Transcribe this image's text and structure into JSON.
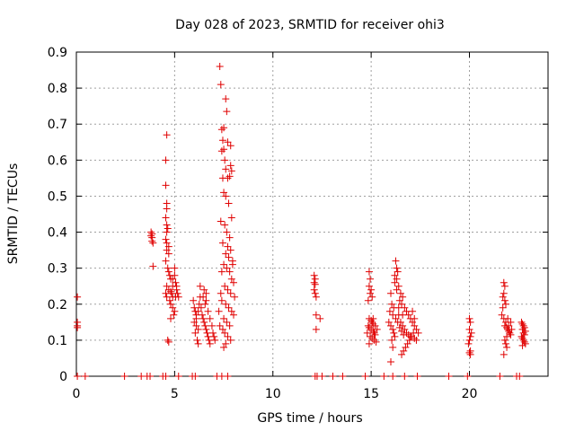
{
  "chart_data": {
    "type": "scatter",
    "title": "Day 028 of 2023, SRMTID for receiver ohi3",
    "xlabel": "GPS time / hours",
    "ylabel": "SRMTID / TECUs",
    "xlim": [
      0,
      24
    ],
    "ylim": [
      0,
      0.9
    ],
    "xticks": [
      0,
      5,
      10,
      15,
      20
    ],
    "yticks": [
      0,
      0.1,
      0.2,
      0.3,
      0.4,
      0.5,
      0.6,
      0.7,
      0.8,
      0.9
    ],
    "grid": true,
    "marker": "+",
    "color": "#e00000",
    "series": [
      {
        "name": "ohi3",
        "points": [
          [
            0.05,
            0.22
          ],
          [
            0.05,
            0.15
          ],
          [
            0.05,
            0.14
          ],
          [
            0.05,
            0.135
          ],
          [
            0.05,
            0
          ],
          [
            0.45,
            0
          ],
          [
            2.45,
            0
          ],
          [
            3.3,
            0
          ],
          [
            3.6,
            0
          ],
          [
            3.75,
            0
          ],
          [
            4.4,
            0
          ],
          [
            4.55,
            0
          ],
          [
            5.2,
            0
          ],
          [
            5.9,
            0
          ],
          [
            6.05,
            0
          ],
          [
            7.15,
            0
          ],
          [
            7.4,
            0
          ],
          [
            7.7,
            0
          ],
          [
            12.15,
            0
          ],
          [
            12.25,
            0
          ],
          [
            12.5,
            0
          ],
          [
            13.05,
            0
          ],
          [
            13.55,
            0
          ],
          [
            14.7,
            0
          ],
          [
            15.65,
            0
          ],
          [
            16.1,
            0
          ],
          [
            16.7,
            0
          ],
          [
            17.35,
            0
          ],
          [
            18.95,
            0
          ],
          [
            19.9,
            0
          ],
          [
            21.55,
            0
          ],
          [
            22.4,
            0
          ],
          [
            22.55,
            0
          ],
          [
            3.8,
            0.4
          ],
          [
            3.8,
            0.39
          ],
          [
            3.85,
            0.385
          ],
          [
            3.85,
            0.375
          ],
          [
            3.9,
            0.37
          ],
          [
            3.9,
            0.305
          ],
          [
            3.85,
            0.395
          ],
          [
            4.6,
            0.67
          ],
          [
            4.55,
            0.6
          ],
          [
            4.55,
            0.53
          ],
          [
            4.6,
            0.48
          ],
          [
            4.6,
            0.465
          ],
          [
            4.55,
            0.44
          ],
          [
            4.6,
            0.42
          ],
          [
            4.65,
            0.41
          ],
          [
            4.6,
            0.4
          ],
          [
            4.55,
            0.38
          ],
          [
            4.6,
            0.37
          ],
          [
            4.7,
            0.36
          ],
          [
            4.6,
            0.35
          ],
          [
            4.7,
            0.34
          ],
          [
            4.55,
            0.32
          ],
          [
            4.65,
            0.3
          ],
          [
            4.7,
            0.29
          ],
          [
            4.75,
            0.28
          ],
          [
            4.8,
            0.27
          ],
          [
            4.6,
            0.25
          ],
          [
            4.7,
            0.24
          ],
          [
            4.8,
            0.235
          ],
          [
            4.85,
            0.23
          ],
          [
            4.9,
            0.22
          ],
          [
            4.75,
            0.21
          ],
          [
            4.8,
            0.2
          ],
          [
            4.9,
            0.19
          ],
          [
            5.0,
            0.18
          ],
          [
            4.95,
            0.17
          ],
          [
            5.05,
            0.22
          ],
          [
            5.1,
            0.25
          ],
          [
            5.0,
            0.28
          ],
          [
            5.05,
            0.26
          ],
          [
            4.9,
            0.25
          ],
          [
            5.1,
            0.24
          ],
          [
            4.8,
            0.16
          ],
          [
            4.65,
            0.1
          ],
          [
            4.7,
            0.095
          ],
          [
            4.55,
            0.23
          ],
          [
            4.6,
            0.22
          ],
          [
            4.9,
            0.27
          ],
          [
            5.0,
            0.3
          ],
          [
            5.15,
            0.23
          ],
          [
            5.2,
            0.22
          ],
          [
            5.95,
            0.21
          ],
          [
            6.0,
            0.19
          ],
          [
            6.05,
            0.18
          ],
          [
            6.1,
            0.17
          ],
          [
            6.0,
            0.15
          ],
          [
            6.1,
            0.14
          ],
          [
            6.2,
            0.13
          ],
          [
            6.05,
            0.12
          ],
          [
            6.15,
            0.1
          ],
          [
            6.2,
            0.09
          ],
          [
            6.25,
            0.2
          ],
          [
            6.3,
            0.22
          ],
          [
            6.35,
            0.19
          ],
          [
            6.4,
            0.17
          ],
          [
            6.45,
            0.16
          ],
          [
            6.5,
            0.15
          ],
          [
            6.55,
            0.14
          ],
          [
            6.6,
            0.13
          ],
          [
            6.65,
            0.12
          ],
          [
            6.7,
            0.11
          ],
          [
            6.75,
            0.1
          ],
          [
            6.8,
            0.09
          ],
          [
            6.5,
            0.24
          ],
          [
            6.6,
            0.21
          ],
          [
            6.7,
            0.18
          ],
          [
            6.8,
            0.16
          ],
          [
            6.9,
            0.14
          ],
          [
            6.95,
            0.12
          ],
          [
            7.0,
            0.11
          ],
          [
            7.05,
            0.1
          ],
          [
            6.3,
            0.25
          ],
          [
            6.45,
            0.22
          ],
          [
            6.55,
            0.2
          ],
          [
            6.6,
            0.23
          ],
          [
            6.2,
            0.18
          ],
          [
            6.1,
            0.16
          ],
          [
            7.3,
            0.86
          ],
          [
            7.35,
            0.81
          ],
          [
            7.6,
            0.77
          ],
          [
            7.65,
            0.735
          ],
          [
            7.5,
            0.69
          ],
          [
            7.4,
            0.685
          ],
          [
            7.45,
            0.655
          ],
          [
            7.7,
            0.65
          ],
          [
            7.85,
            0.64
          ],
          [
            7.5,
            0.63
          ],
          [
            7.4,
            0.625
          ],
          [
            7.55,
            0.6
          ],
          [
            7.85,
            0.585
          ],
          [
            7.6,
            0.575
          ],
          [
            7.9,
            0.57
          ],
          [
            7.8,
            0.555
          ],
          [
            7.45,
            0.55
          ],
          [
            7.7,
            0.55
          ],
          [
            7.5,
            0.51
          ],
          [
            7.6,
            0.5
          ],
          [
            7.75,
            0.48
          ],
          [
            7.9,
            0.44
          ],
          [
            7.35,
            0.43
          ],
          [
            7.55,
            0.42
          ],
          [
            7.65,
            0.4
          ],
          [
            7.8,
            0.385
          ],
          [
            7.45,
            0.37
          ],
          [
            7.7,
            0.36
          ],
          [
            7.85,
            0.35
          ],
          [
            7.6,
            0.34
          ],
          [
            7.75,
            0.33
          ],
          [
            7.95,
            0.32
          ],
          [
            7.5,
            0.31
          ],
          [
            7.65,
            0.3
          ],
          [
            7.8,
            0.29
          ],
          [
            7.9,
            0.27
          ],
          [
            8.0,
            0.26
          ],
          [
            7.55,
            0.25
          ],
          [
            7.7,
            0.24
          ],
          [
            7.85,
            0.23
          ],
          [
            8.05,
            0.22
          ],
          [
            7.4,
            0.21
          ],
          [
            7.6,
            0.2
          ],
          [
            7.75,
            0.19
          ],
          [
            7.9,
            0.18
          ],
          [
            8.0,
            0.17
          ],
          [
            7.5,
            0.16
          ],
          [
            7.65,
            0.15
          ],
          [
            7.8,
            0.14
          ],
          [
            7.3,
            0.14
          ],
          [
            7.45,
            0.13
          ],
          [
            7.55,
            0.12
          ],
          [
            7.7,
            0.11
          ],
          [
            7.85,
            0.1
          ],
          [
            7.6,
            0.09
          ],
          [
            7.35,
            0.23
          ],
          [
            7.25,
            0.18
          ],
          [
            7.4,
            0.29
          ],
          [
            7.95,
            0.31
          ],
          [
            7.5,
            0.08
          ],
          [
            12.1,
            0.28
          ],
          [
            12.15,
            0.27
          ],
          [
            12.1,
            0.26
          ],
          [
            12.15,
            0.255
          ],
          [
            12.1,
            0.24
          ],
          [
            12.15,
            0.23
          ],
          [
            12.2,
            0.22
          ],
          [
            12.2,
            0.17
          ],
          [
            12.4,
            0.16
          ],
          [
            12.2,
            0.13
          ],
          [
            14.9,
            0.29
          ],
          [
            14.95,
            0.27
          ],
          [
            14.9,
            0.25
          ],
          [
            15.0,
            0.24
          ],
          [
            14.95,
            0.23
          ],
          [
            15.05,
            0.22
          ],
          [
            14.85,
            0.21
          ],
          [
            14.9,
            0.16
          ],
          [
            15.0,
            0.155
          ],
          [
            15.05,
            0.15
          ],
          [
            15.1,
            0.145
          ],
          [
            14.85,
            0.14
          ],
          [
            14.9,
            0.135
          ],
          [
            15.0,
            0.13
          ],
          [
            15.1,
            0.125
          ],
          [
            15.15,
            0.12
          ],
          [
            15.2,
            0.115
          ],
          [
            14.8,
            0.12
          ],
          [
            14.95,
            0.11
          ],
          [
            15.05,
            0.105
          ],
          [
            15.15,
            0.1
          ],
          [
            15.25,
            0.095
          ],
          [
            14.9,
            0.09
          ],
          [
            15.2,
            0.14
          ],
          [
            15.3,
            0.13
          ],
          [
            15.1,
            0.16
          ],
          [
            16.25,
            0.32
          ],
          [
            16.3,
            0.3
          ],
          [
            16.35,
            0.29
          ],
          [
            16.3,
            0.27
          ],
          [
            16.2,
            0.26
          ],
          [
            16.4,
            0.25
          ],
          [
            16.5,
            0.23
          ],
          [
            16.6,
            0.22
          ],
          [
            16.45,
            0.21
          ],
          [
            16.55,
            0.2
          ],
          [
            16.7,
            0.19
          ],
          [
            16.8,
            0.18
          ],
          [
            16.9,
            0.17
          ],
          [
            17.0,
            0.16
          ],
          [
            17.1,
            0.15
          ],
          [
            17.2,
            0.14
          ],
          [
            17.3,
            0.13
          ],
          [
            17.15,
            0.12
          ],
          [
            17.05,
            0.11
          ],
          [
            16.95,
            0.1
          ],
          [
            16.85,
            0.09
          ],
          [
            16.75,
            0.08
          ],
          [
            16.65,
            0.07
          ],
          [
            16.55,
            0.06
          ],
          [
            16.4,
            0.17
          ],
          [
            16.5,
            0.15
          ],
          [
            16.6,
            0.14
          ],
          [
            16.7,
            0.13
          ],
          [
            16.8,
            0.12
          ],
          [
            16.9,
            0.115
          ],
          [
            17.0,
            0.11
          ],
          [
            17.2,
            0.105
          ],
          [
            17.3,
            0.1
          ],
          [
            17.4,
            0.12
          ],
          [
            16.0,
            0.23
          ],
          [
            16.05,
            0.2
          ],
          [
            15.95,
            0.18
          ],
          [
            16.1,
            0.17
          ],
          [
            15.9,
            0.15
          ],
          [
            16.0,
            0.14
          ],
          [
            16.1,
            0.13
          ],
          [
            16.15,
            0.12
          ],
          [
            16.2,
            0.11
          ],
          [
            16.05,
            0.1
          ],
          [
            16.1,
            0.08
          ],
          [
            16.0,
            0.04
          ],
          [
            16.15,
            0.19
          ],
          [
            16.25,
            0.16
          ],
          [
            16.35,
            0.15
          ],
          [
            16.45,
            0.135
          ],
          [
            16.55,
            0.125
          ],
          [
            16.65,
            0.115
          ],
          [
            17.1,
            0.18
          ],
          [
            17.2,
            0.16
          ],
          [
            16.3,
            0.24
          ],
          [
            16.2,
            0.28
          ],
          [
            16.4,
            0.19
          ],
          [
            16.6,
            0.17
          ],
          [
            20.0,
            0.16
          ],
          [
            20.05,
            0.15
          ],
          [
            20.0,
            0.13
          ],
          [
            20.1,
            0.12
          ],
          [
            20.05,
            0.11
          ],
          [
            20.0,
            0.1
          ],
          [
            19.95,
            0.09
          ],
          [
            20.05,
            0.07
          ],
          [
            20.0,
            0.065
          ],
          [
            20.05,
            0.06
          ],
          [
            21.75,
            0.26
          ],
          [
            21.8,
            0.25
          ],
          [
            21.75,
            0.23
          ],
          [
            21.7,
            0.22
          ],
          [
            21.8,
            0.21
          ],
          [
            21.85,
            0.2
          ],
          [
            21.7,
            0.19
          ],
          [
            21.75,
            0.16
          ],
          [
            21.85,
            0.15
          ],
          [
            21.8,
            0.14
          ],
          [
            21.9,
            0.135
          ],
          [
            21.95,
            0.13
          ],
          [
            22.0,
            0.125
          ],
          [
            22.05,
            0.12
          ],
          [
            22.1,
            0.115
          ],
          [
            21.9,
            0.11
          ],
          [
            21.8,
            0.1
          ],
          [
            21.85,
            0.09
          ],
          [
            21.9,
            0.08
          ],
          [
            21.75,
            0.06
          ],
          [
            22.0,
            0.14
          ],
          [
            22.1,
            0.15
          ],
          [
            21.95,
            0.16
          ],
          [
            22.15,
            0.13
          ],
          [
            21.65,
            0.17
          ],
          [
            22.65,
            0.15
          ],
          [
            22.7,
            0.145
          ],
          [
            22.75,
            0.14
          ],
          [
            22.8,
            0.135
          ],
          [
            22.7,
            0.13
          ],
          [
            22.75,
            0.12
          ],
          [
            22.8,
            0.115
          ],
          [
            22.65,
            0.11
          ],
          [
            22.7,
            0.105
          ],
          [
            22.75,
            0.1
          ],
          [
            22.8,
            0.095
          ],
          [
            22.85,
            0.09
          ],
          [
            22.7,
            0.085
          ],
          [
            22.85,
            0.125
          ]
        ]
      }
    ]
  }
}
